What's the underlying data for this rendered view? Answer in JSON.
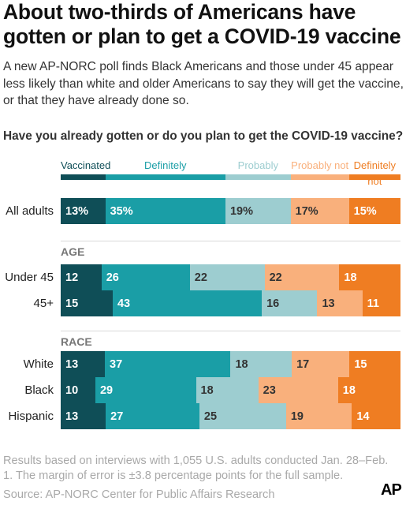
{
  "title": "About two-thirds of Americans have gotten or plan to get a COVID-19 vaccine",
  "subtitle": "A new AP-NORC poll finds Black Americans and those under 45 appear less likely than white and older Americans to say they will get the vaccine, or that they have already done so.",
  "question": "Have you already gotten or do you plan to get the COVID-19 vaccine?",
  "footnote": "Results based on interviews with 1,055 U.S. adults conducted Jan. 28–Feb. 1. The margin of error is ±3.8 percentage points for the full sample.",
  "source": "Source: AP-NORC Center for Public Affairs Research",
  "logo": "AP",
  "colors": {
    "vaccinated": "#0f4e57",
    "definitely": "#1a9ea6",
    "probably": "#9dcdd0",
    "probably_not": "#f9b07c",
    "definitely_not": "#ef7d22"
  },
  "chart_data": {
    "type": "bar",
    "orientation": "horizontal",
    "stacked": true,
    "xlim": [
      0,
      100
    ],
    "legend_position": "top",
    "legend": [
      "Vaccinated",
      "Definitely",
      "Probably",
      "Probably not",
      "Definitely not"
    ],
    "sections": [
      {
        "label": "",
        "rows": [
          {
            "category": "All adults",
            "values": [
              13,
              35,
              19,
              17,
              15
            ],
            "labels": [
              "13%",
              "35%",
              "19%",
              "17%",
              "15%"
            ]
          }
        ]
      },
      {
        "label": "AGE",
        "rows": [
          {
            "category": "Under 45",
            "values": [
              12,
              26,
              22,
              22,
              18
            ],
            "labels": [
              "12",
              "26",
              "22",
              "22",
              "18"
            ]
          },
          {
            "category": "45+",
            "values": [
              15,
              43,
              16,
              13,
              11
            ],
            "labels": [
              "15",
              "43",
              "16",
              "13",
              "11"
            ]
          }
        ]
      },
      {
        "label": "RACE",
        "rows": [
          {
            "category": "White",
            "values": [
              13,
              37,
              18,
              17,
              15
            ],
            "labels": [
              "13",
              "37",
              "18",
              "17",
              "15"
            ]
          },
          {
            "category": "Black",
            "values": [
              10,
              29,
              18,
              23,
              18
            ],
            "labels": [
              "10",
              "29",
              "18",
              "23",
              "18"
            ]
          },
          {
            "category": "Hispanic",
            "values": [
              13,
              27,
              25,
              19,
              14
            ],
            "labels": [
              "13",
              "27",
              "25",
              "19",
              "14"
            ]
          }
        ]
      }
    ]
  }
}
